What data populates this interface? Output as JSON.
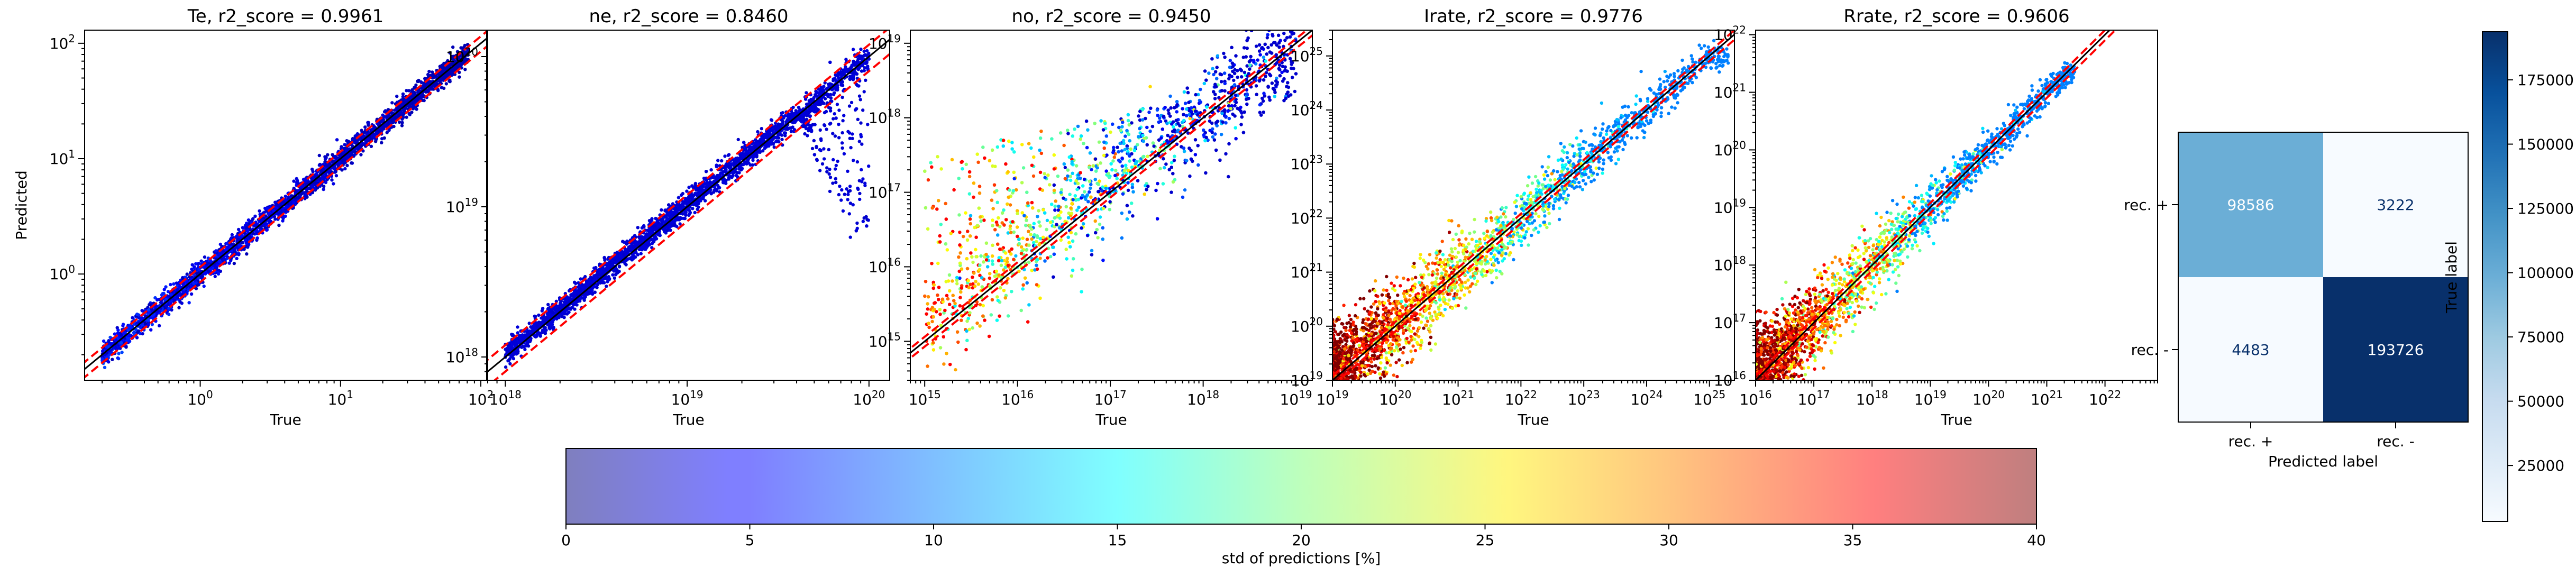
{
  "chart_data": [
    {
      "type": "scatter",
      "title": "Te, r2_score = 0.9961",
      "xlabel": "True",
      "ylabel": "Predicted",
      "xscale": "log",
      "yscale": "log",
      "xlim": [
        0.15,
        110
      ],
      "ylim": [
        0.12,
        130
      ],
      "xticks": [
        {
          "v": 1,
          "m": "0"
        },
        {
          "v": 10,
          "m": "1"
        },
        {
          "v": 100,
          "m": "2"
        }
      ],
      "yticks": [
        {
          "v": 1,
          "m": "0"
        },
        {
          "v": 10,
          "m": "1"
        },
        {
          "v": 100,
          "m": "2"
        }
      ],
      "data_range": [
        0.2,
        82
      ],
      "trend": [
        [
          0.2,
          0.2
        ],
        [
          1,
          1.0
        ],
        [
          10,
          10.0
        ],
        [
          82,
          82
        ]
      ],
      "spread_dex": 0.05,
      "bulge": [],
      "color_std_percent": [
        2,
        8
      ],
      "reference_lines": {
        "lower_factor": 0.85,
        "upper_factor": 1.15
      }
    },
    {
      "type": "scatter",
      "title": "ne, r2_score = 0.8460",
      "xlabel": "True",
      "ylabel": "",
      "xscale": "log",
      "yscale": "log",
      "xlim": [
        8e+17,
        1.3e+20
      ],
      "ylim": [
        7e+17,
        1.5e+20
      ],
      "xticks": [
        {
          "v": 1e+18,
          "m": "18"
        },
        {
          "v": 1e+19,
          "m": "19"
        },
        {
          "v": 1e+20,
          "m": "20"
        }
      ],
      "yticks": [
        {
          "v": 1e+18,
          "m": "18"
        },
        {
          "v": 1e+19,
          "m": "19"
        },
        {
          "v": 1e+20,
          "m": "20"
        }
      ],
      "data_range": [
        1e+18,
        1e+20
      ],
      "trend": [
        [
          1e+18,
          1.05e+18
        ],
        [
          1e+19,
          1.05e+19
        ],
        [
          1e+20,
          1e+20
        ]
      ],
      "spread_dex": 0.04,
      "bulge": [
        {
          "x_from": 4e+19,
          "x_to": 1e+20,
          "y_min_at_end": 2e+19,
          "dip_x": 8e+19,
          "dip_y": 6e+18
        }
      ],
      "color_std_percent": [
        3,
        5
      ],
      "reference_lines": {
        "lower_factor": 0.8,
        "upper_factor": 1.2
      }
    },
    {
      "type": "scatter",
      "title": "no, r2_score = 0.9450",
      "xlabel": "True",
      "ylabel": "",
      "xscale": "log",
      "yscale": "log",
      "xlim": [
        700000000000000.0,
        1.5e+19
      ],
      "ylim": [
        300000000000000.0,
        1.5e+19
      ],
      "xticks": [
        {
          "v": 1000000000000000.0,
          "m": "15"
        },
        {
          "v": 1e+16,
          "m": "16"
        },
        {
          "v": 1e+17,
          "m": "17"
        },
        {
          "v": 1e+18,
          "m": "18"
        },
        {
          "v": 1e+19,
          "m": "19"
        }
      ],
      "yticks": [
        {
          "v": 1000000000000000.0,
          "m": "15"
        },
        {
          "v": 1e+16,
          "m": "16"
        },
        {
          "v": 1e+17,
          "m": "17"
        },
        {
          "v": 1e+18,
          "m": "18"
        },
        {
          "v": 1e+19,
          "m": "19"
        }
      ],
      "data_range": [
        1000000000000000.0,
        1e+19
      ],
      "trend": [
        [
          1000000000000000.0,
          1500000000000000.0
        ],
        [
          1e+17,
          1e+17
        ],
        [
          1e+19,
          1e+19
        ]
      ],
      "spread_dex": 0.35,
      "upper_cloud": {
        "x_from": 1000000000000000.0,
        "x_to": 1e+18,
        "y_top_start": 3e+17,
        "y_top_end": 2e+18
      },
      "bulge": [],
      "color_std_percent": [
        3,
        35
      ],
      "reference_lines": {
        "lower_factor": 0.85,
        "upper_factor": 1.15
      }
    },
    {
      "type": "scatter",
      "title": "Irate, r2_score = 0.9776",
      "xlabel": "True",
      "ylabel": "",
      "xscale": "log",
      "yscale": "log",
      "xlim": [
        1e+19,
        2.5e+25
      ],
      "ylim": [
        1e+19,
        3e+25
      ],
      "xticks": [
        {
          "v": 1e+19,
          "m": "19"
        },
        {
          "v": 1e+20,
          "m": "20"
        },
        {
          "v": 1e+21,
          "m": "21"
        },
        {
          "v": 1e+22,
          "m": "22"
        },
        {
          "v": 1e+23,
          "m": "23"
        },
        {
          "v": 1e+24,
          "m": "24"
        },
        {
          "v": 1e+25,
          "m": "25"
        }
      ],
      "yticks": [
        {
          "v": 1e+19,
          "m": "19"
        },
        {
          "v": 1e+20,
          "m": "20"
        },
        {
          "v": 1e+21,
          "m": "21"
        },
        {
          "v": 1e+22,
          "m": "22"
        },
        {
          "v": 1e+23,
          "m": "23"
        },
        {
          "v": 1e+24,
          "m": "24"
        },
        {
          "v": 1e+25,
          "m": "25"
        }
      ],
      "data_range": [
        1e+19,
        2e+25
      ],
      "trend": [
        [
          1e+19,
          1e+19
        ],
        [
          1e+25,
          1e+25
        ]
      ],
      "spread_dex": 0.45,
      "bulge": [],
      "color_std_percent": [
        10,
        40
      ],
      "reference_lines": {
        "lower_factor": 0.8,
        "upper_factor": 1.2
      }
    },
    {
      "type": "scatter",
      "title": "Rrate, r2_score = 0.9606",
      "xlabel": "True",
      "ylabel": "",
      "xscale": "log",
      "yscale": "log",
      "xlim": [
        1e+16,
        8e+22
      ],
      "ylim": [
        1e+16,
        1.2e+22
      ],
      "xticks": [
        {
          "v": 1e+16,
          "m": "16"
        },
        {
          "v": 1e+17,
          "m": "17"
        },
        {
          "v": 1e+18,
          "m": "18"
        },
        {
          "v": 1e+19,
          "m": "19"
        },
        {
          "v": 1e+20,
          "m": "20"
        },
        {
          "v": 1e+21,
          "m": "21"
        },
        {
          "v": 1e+22,
          "m": "22"
        }
      ],
      "yticks": [
        {
          "v": 1e+16,
          "m": "16"
        },
        {
          "v": 1e+17,
          "m": "17"
        },
        {
          "v": 1e+18,
          "m": "18"
        },
        {
          "v": 1e+19,
          "m": "19"
        },
        {
          "v": 1e+20,
          "m": "20"
        },
        {
          "v": 1e+21,
          "m": "21"
        },
        {
          "v": 1e+22,
          "m": "22"
        }
      ],
      "data_range": [
        1e+16,
        3e+21
      ],
      "trend": [
        [
          1e+16,
          1e+16
        ],
        [
          1e+21,
          1e+21
        ],
        [
          3e+21,
          2.5e+21
        ]
      ],
      "spread_dex": 0.4,
      "bulge": [],
      "color_std_percent": [
        10,
        40
      ],
      "reference_lines": {
        "lower_factor": 0.8,
        "upper_factor": 1.2
      }
    },
    {
      "type": "heatmap",
      "subtype": "confusion_matrix",
      "xlabel": "Predicted label",
      "ylabel": "True label",
      "x_categories": [
        "rec. +",
        "rec. -"
      ],
      "y_categories": [
        "rec. +",
        "rec. -"
      ],
      "values": [
        [
          98586,
          3222
        ],
        [
          4483,
          193726
        ]
      ],
      "colormap": "Blues",
      "colorbar": {
        "ticks": [
          25000,
          50000,
          75000,
          100000,
          125000,
          150000,
          175000
        ],
        "vmin": 3222,
        "vmax": 193726
      }
    }
  ],
  "colorbar_std": {
    "label": "std of predictions [%]",
    "colormap": "jet",
    "alpha": 0.5,
    "vmin": 0,
    "vmax": 40,
    "ticks": [
      0,
      5,
      10,
      15,
      20,
      25,
      30,
      35,
      40
    ]
  },
  "marker_colors": {
    "line_identity": "#000000",
    "line_bounds": "#ff0000"
  }
}
